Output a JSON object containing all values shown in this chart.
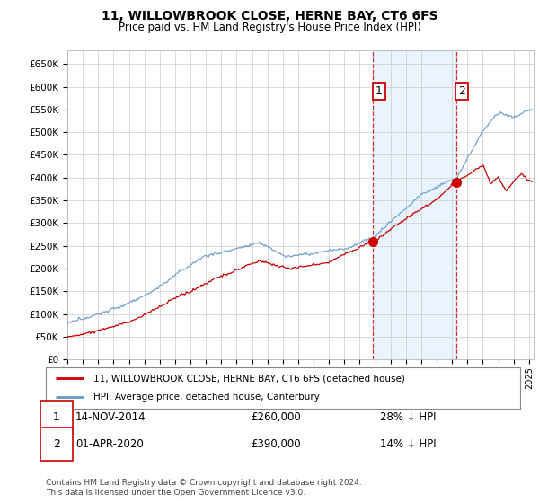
{
  "title": "11, WILLOWBROOK CLOSE, HERNE BAY, CT6 6FS",
  "subtitle": "Price paid vs. HM Land Registry's House Price Index (HPI)",
  "ylim": [
    0,
    680000
  ],
  "yticks": [
    0,
    50000,
    100000,
    150000,
    200000,
    250000,
    300000,
    350000,
    400000,
    450000,
    500000,
    550000,
    600000,
    650000
  ],
  "xlim_start": 1995.0,
  "xlim_end": 2025.3,
  "background_color": "#ffffff",
  "grid_color": "#cccccc",
  "hpi_color": "#6699cc",
  "price_color": "#cc0000",
  "sale1_date": 2014.87,
  "sale1_price": 260000,
  "sale1_label": "1",
  "sale2_date": 2020.25,
  "sale2_price": 390000,
  "sale2_label": "2",
  "legend_line1": "11, WILLOWBROOK CLOSE, HERNE BAY, CT6 6FS (detached house)",
  "legend_line2": "HPI: Average price, detached house, Canterbury",
  "annotation1_date": "14-NOV-2014",
  "annotation1_price": "£260,000",
  "annotation1_hpi": "28% ↓ HPI",
  "annotation2_date": "01-APR-2020",
  "annotation2_price": "£390,000",
  "annotation2_hpi": "14% ↓ HPI",
  "footer": "Contains HM Land Registry data © Crown copyright and database right 2024.\nThis data is licensed under the Open Government Licence v3.0.",
  "shaded_region_start": 2014.87,
  "shaded_region_end": 2020.25
}
